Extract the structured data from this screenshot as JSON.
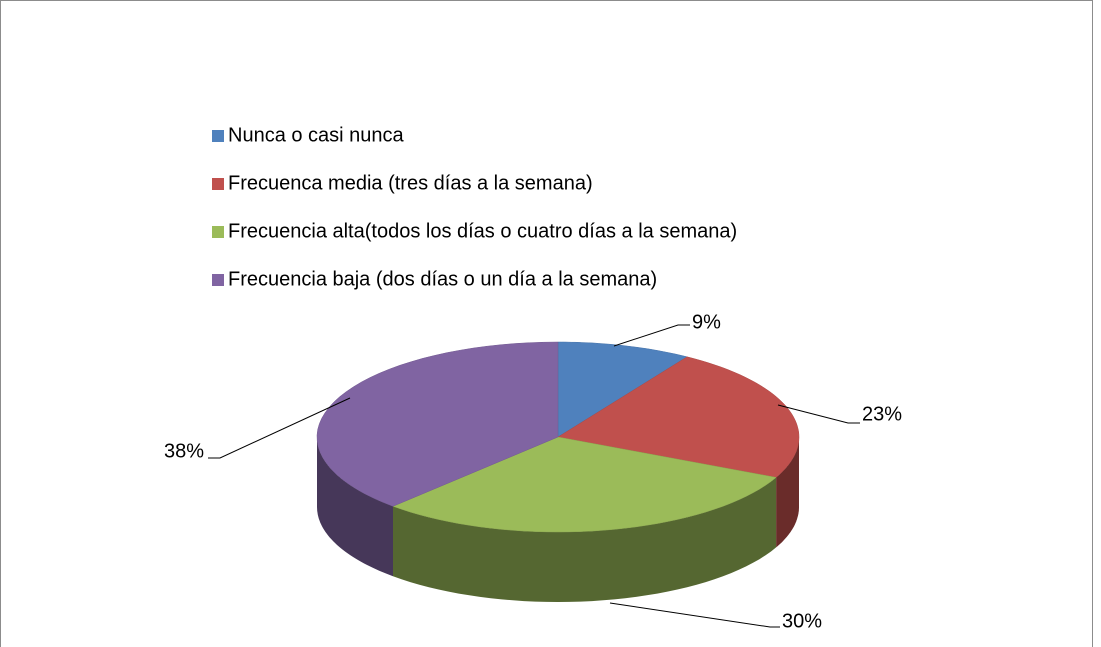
{
  "chart_data": {
    "type": "pie",
    "categories": [
      "Nunca o casi nunca",
      "Frecuenca media (tres días a la semana)",
      "Frecuencia alta(todos los días o cuatro días a la semana)",
      "Frecuencia baja (dos días o un día a la semana)"
    ],
    "values": [
      9,
      23,
      30,
      38
    ],
    "value_labels": [
      "9%",
      "23%",
      "30%",
      "38%"
    ],
    "colors": [
      "#4f81bd",
      "#c0504d",
      "#9bbb59",
      "#8064a2"
    ]
  }
}
